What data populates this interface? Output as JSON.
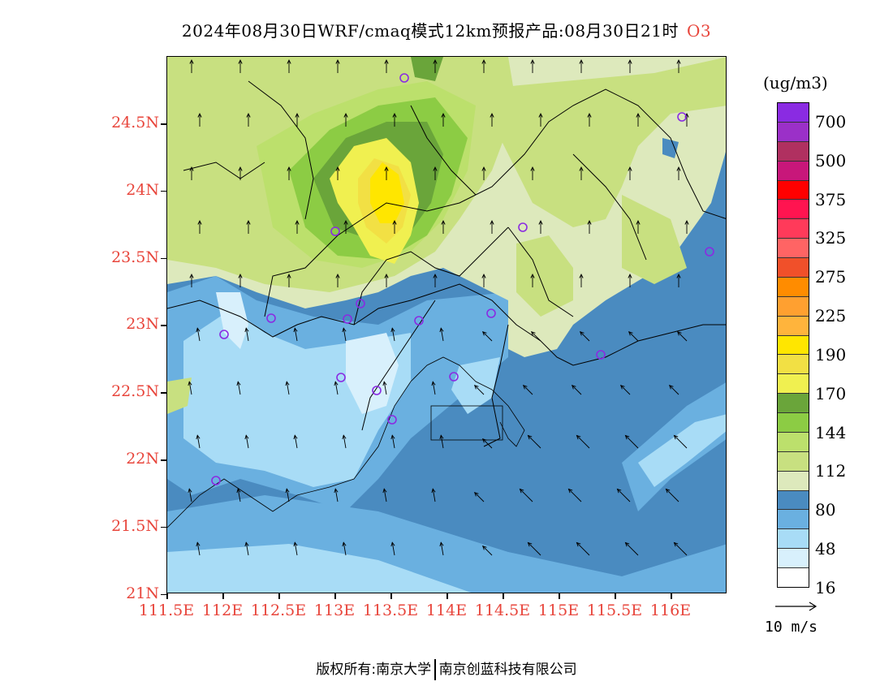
{
  "header": {
    "title": "2024年08月30日WRF/cmaq模式12km预报产品:08月30日21时",
    "species": "O3"
  },
  "map": {
    "lat_labels": [
      "24.5N",
      "24N",
      "23.5N",
      "23N",
      "22.5N",
      "22N",
      "21.5N",
      "21N"
    ],
    "lon_labels": [
      "111.5E",
      "112E",
      "112.5E",
      "113E",
      "113.5E",
      "114E",
      "114.5E",
      "115E",
      "115.5E",
      "116E"
    ],
    "lat_range": [
      21,
      25
    ],
    "lon_range": [
      111.5,
      116.5
    ]
  },
  "legend": {
    "unit": "(ug/m3)",
    "colors": [
      "#8a2be2",
      "#9b30c8",
      "#b03060",
      "#c8177a",
      "#ff0000",
      "#ff1450",
      "#ff3a5a",
      "#ff6464",
      "#f0502a",
      "#ff8c00",
      "#ffa030",
      "#ffb43c",
      "#ffe600",
      "#f2e044",
      "#f0f050",
      "#6aa53a",
      "#8ccc44",
      "#bce06c",
      "#c8e080",
      "#dde9bc",
      "#4a8bc0",
      "#6ab0e0",
      "#a8dcf6",
      "#d8f0fc",
      "#ffffff"
    ],
    "labels": [
      "700",
      "500",
      "375",
      "325",
      "275",
      "225",
      "190",
      "170",
      "144",
      "112",
      "80",
      "48",
      "16"
    ],
    "wind_reference": "10 m/s"
  },
  "footer": {
    "copyright": "版权所有:南京大学",
    "company": "南京创蓝科技有限公司"
  }
}
